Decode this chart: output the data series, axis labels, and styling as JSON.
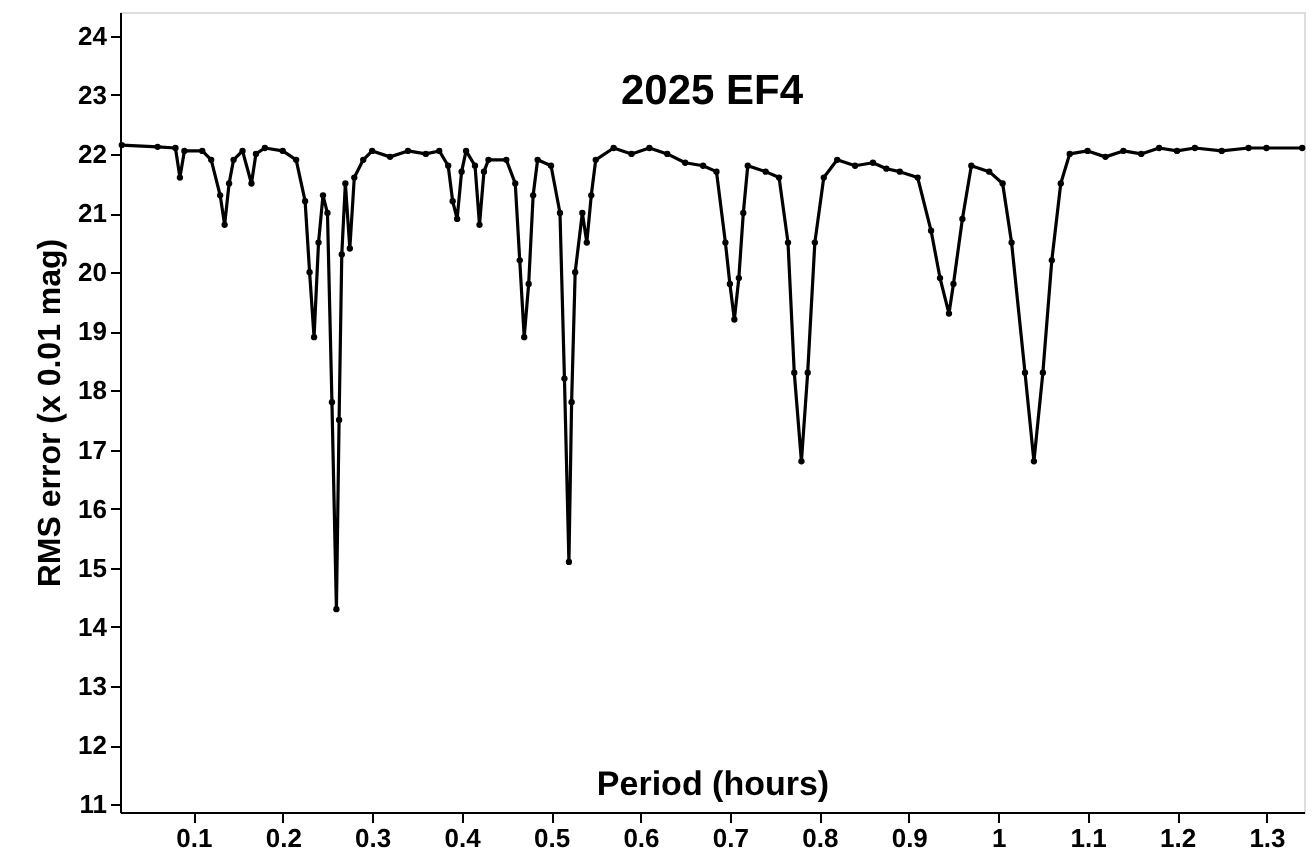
{
  "chart_data": {
    "type": "line",
    "title": "2025 EF4",
    "xlabel": "Period (hours)",
    "ylabel": "RMS error (x 0.01 mag)",
    "x": [
      0.02,
      0.06,
      0.08,
      0.085,
      0.09,
      0.11,
      0.12,
      0.13,
      0.135,
      0.14,
      0.145,
      0.155,
      0.165,
      0.17,
      0.18,
      0.2,
      0.215,
      0.225,
      0.23,
      0.235,
      0.24,
      0.245,
      0.25,
      0.255,
      0.26,
      0.263,
      0.266,
      0.27,
      0.275,
      0.28,
      0.29,
      0.3,
      0.32,
      0.34,
      0.36,
      0.375,
      0.385,
      0.39,
      0.395,
      0.4,
      0.405,
      0.415,
      0.42,
      0.425,
      0.43,
      0.45,
      0.46,
      0.465,
      0.47,
      0.475,
      0.48,
      0.485,
      0.5,
      0.51,
      0.515,
      0.52,
      0.523,
      0.527,
      0.535,
      0.54,
      0.545,
      0.55,
      0.57,
      0.59,
      0.61,
      0.63,
      0.65,
      0.67,
      0.685,
      0.695,
      0.7,
      0.705,
      0.71,
      0.715,
      0.72,
      0.74,
      0.755,
      0.765,
      0.772,
      0.78,
      0.787,
      0.795,
      0.805,
      0.82,
      0.84,
      0.86,
      0.875,
      0.89,
      0.91,
      0.925,
      0.935,
      0.945,
      0.95,
      0.96,
      0.97,
      0.99,
      1.005,
      1.015,
      1.03,
      1.04,
      1.05,
      1.06,
      1.07,
      1.08,
      1.1,
      1.12,
      1.14,
      1.16,
      1.18,
      1.2,
      1.22,
      1.25,
      1.28,
      1.3,
      1.34
    ],
    "series": [
      {
        "color": "#000000",
        "values": [
          22.15,
          22.12,
          22.1,
          21.6,
          22.05,
          22.05,
          21.9,
          21.3,
          20.8,
          21.5,
          21.9,
          22.05,
          21.5,
          22.0,
          22.1,
          22.05,
          21.9,
          21.2,
          20.0,
          18.9,
          20.5,
          21.3,
          21.0,
          17.8,
          14.3,
          17.5,
          20.3,
          21.5,
          20.4,
          21.6,
          21.9,
          22.05,
          21.95,
          22.05,
          22.0,
          22.05,
          21.8,
          21.2,
          20.9,
          21.7,
          22.05,
          21.8,
          20.8,
          21.7,
          21.9,
          21.9,
          21.5,
          20.2,
          18.9,
          19.8,
          21.3,
          21.9,
          21.8,
          21.0,
          18.2,
          15.1,
          17.8,
          20.0,
          21.0,
          20.5,
          21.3,
          21.9,
          22.1,
          22.0,
          22.1,
          22.0,
          21.85,
          21.8,
          21.7,
          20.5,
          19.8,
          19.2,
          19.9,
          21.0,
          21.8,
          21.7,
          21.6,
          20.5,
          18.3,
          16.8,
          18.3,
          20.5,
          21.6,
          21.9,
          21.8,
          21.85,
          21.75,
          21.7,
          21.6,
          20.7,
          19.9,
          19.3,
          19.8,
          20.9,
          21.8,
          21.7,
          21.5,
          20.5,
          18.3,
          16.8,
          18.3,
          20.2,
          21.5,
          22.0,
          22.05,
          21.95,
          22.05,
          22.0,
          22.1,
          22.05,
          22.1,
          22.05,
          22.1,
          22.1,
          22.1
        ]
      }
    ],
    "xlim": [
      0.018,
      1.342
    ],
    "ylim": [
      10.87,
      24.4
    ],
    "xticks": [
      0.1,
      0.2,
      0.3,
      0.4,
      0.5,
      0.6,
      0.7,
      0.8,
      0.9,
      1,
      1.1,
      1.2,
      1.3
    ],
    "yticks": [
      11,
      12,
      13,
      14,
      15,
      16,
      17,
      18,
      19,
      20,
      21,
      22,
      23,
      24
    ],
    "marker": "circle",
    "line_style": "solid",
    "grid": false
  }
}
